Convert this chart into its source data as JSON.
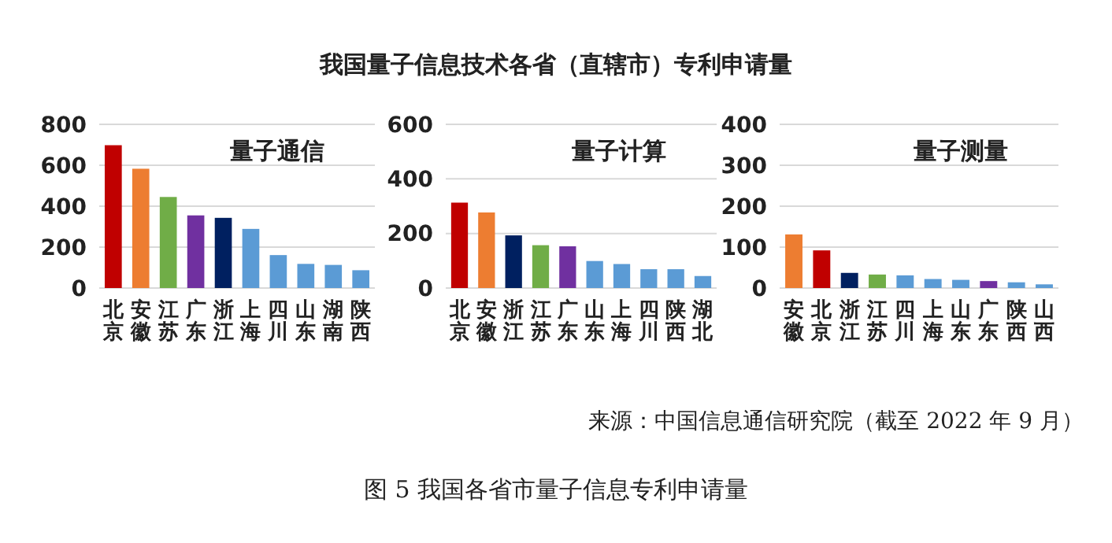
{
  "chart_data": [
    {
      "type": "bar",
      "title": "量子通信",
      "annotations": [
        "我国量子信息技术各省（直辖市）专利申请量"
      ],
      "categories": [
        "北京",
        "安徽",
        "江苏",
        "广东",
        "浙江",
        "上海",
        "四川",
        "山东",
        "湖南",
        "陕西"
      ],
      "values": [
        698,
        583,
        445,
        355,
        343,
        289,
        161,
        118,
        113,
        87
      ],
      "colors": [
        "#c00000",
        "#ed7d31",
        "#70ad47",
        "#7030a0",
        "#002060",
        "#5b9bd5",
        "#5b9bd5",
        "#5b9bd5",
        "#5b9bd5",
        "#5b9bd5"
      ],
      "ylim": [
        0,
        800
      ],
      "yticks": [
        0,
        200,
        400,
        600,
        800
      ],
      "grid": "y"
    },
    {
      "type": "bar",
      "title": "量子计算",
      "categories": [
        "北京",
        "安徽",
        "浙江",
        "江苏",
        "广东",
        "山东",
        "上海",
        "四川",
        "陕西",
        "湖北"
      ],
      "values": [
        313,
        277,
        193,
        157,
        153,
        99,
        88,
        69,
        69,
        44
      ],
      "colors": [
        "#c00000",
        "#ed7d31",
        "#002060",
        "#70ad47",
        "#7030a0",
        "#5b9bd5",
        "#5b9bd5",
        "#5b9bd5",
        "#5b9bd5",
        "#5b9bd5"
      ],
      "ylim": [
        0,
        600
      ],
      "yticks": [
        0,
        200,
        400,
        600
      ],
      "grid": "y"
    },
    {
      "type": "bar",
      "title": "量子测量",
      "annotations": [
        "来源：中国信息通信研究院（截至 2022 年 9 月）",
        "图 5  我国各省市量子信息专利申请量"
      ],
      "categories": [
        "安徽",
        "北京",
        "浙江",
        "江苏",
        "四川",
        "上海",
        "山东",
        "广东",
        "陕西",
        "山西"
      ],
      "values": [
        131,
        92,
        37,
        33,
        31,
        22,
        20,
        17,
        14,
        9
      ],
      "colors": [
        "#ed7d31",
        "#c00000",
        "#002060",
        "#70ad47",
        "#5b9bd5",
        "#5b9bd5",
        "#5b9bd5",
        "#7030a0",
        "#5b9bd5",
        "#5b9bd5"
      ],
      "ylim": [
        0,
        400
      ],
      "yticks": [
        0,
        100,
        200,
        300,
        400
      ],
      "grid": "y"
    }
  ]
}
